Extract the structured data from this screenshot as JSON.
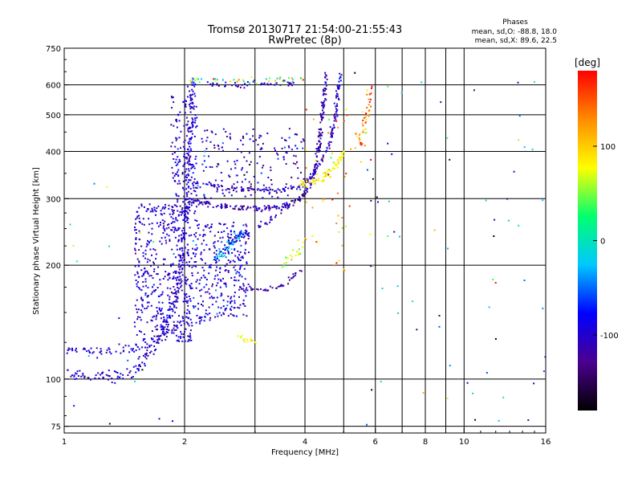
{
  "chart_data": {
    "type": "scatter",
    "title": "Tromsø 20130717 21:54:00-21:55:43",
    "subtitle": "RwPretec (8p)",
    "xlabel": "Frequency [MHz]",
    "ylabel": "Stationary phase Virtual Height [km]",
    "x_scale": "log",
    "y_scale": "log",
    "xlim": [
      1,
      16
    ],
    "ylim": [
      72,
      750
    ],
    "x_ticks": [
      1,
      2,
      4,
      6,
      8,
      10,
      16
    ],
    "x_tick_labels": [
      "1",
      "2",
      "4",
      "6",
      "8",
      "10",
      "16"
    ],
    "x_minor_gridlines": [
      3,
      5,
      7,
      9
    ],
    "y_ticks": [
      75,
      100,
      200,
      300,
      400,
      500,
      600,
      750
    ],
    "y_tick_labels": [
      "75",
      "100",
      "200",
      "300",
      "400",
      "500",
      "600",
      "750"
    ],
    "grid": true,
    "info": {
      "heading": "Phases",
      "line1": "mean, sd,O: -88.8, 18.0",
      "line2": "mean, sd,X: 89.6, 22.5"
    },
    "colorbar": {
      "label": "[deg]",
      "range": [
        -180,
        180
      ],
      "ticks": [
        100,
        0,
        -100
      ],
      "tick_labels": [
        "100",
        "0",
        "-100"
      ],
      "colors": [
        "#000000",
        "#4b0090",
        "#0000ff",
        "#00c8ff",
        "#00ff70",
        "#ffff00",
        "#ff8c00",
        "#ff0000"
      ]
    },
    "series": [
      {
        "type": "curve",
        "points": [
          [
            1.0,
            118
          ],
          [
            1.05,
            120
          ],
          [
            1.1,
            118
          ],
          [
            1.15,
            119
          ],
          [
            1.2,
            118
          ],
          [
            1.3,
            118
          ],
          [
            1.45,
            120
          ],
          [
            1.6,
            123
          ],
          [
            1.75,
            130
          ],
          [
            1.9,
            138
          ],
          [
            1.98,
            142
          ],
          [
            2.1,
            143
          ],
          [
            2.3,
            145
          ]
        ],
        "spread": 0.05,
        "density": 3,
        "phase": -95,
        "phase_sd": 12
      },
      {
        "type": "curve",
        "points": [
          [
            1.0,
            105
          ],
          [
            1.08,
            103
          ],
          [
            1.15,
            102
          ],
          [
            1.3,
            101
          ],
          [
            1.45,
            103
          ],
          [
            1.55,
            108
          ],
          [
            1.62,
            115
          ],
          [
            1.7,
            125
          ],
          [
            1.8,
            140
          ],
          [
            1.9,
            165
          ],
          [
            1.97,
            200
          ],
          [
            2.0,
            250
          ],
          [
            2.02,
            300
          ],
          [
            2.05,
            380
          ],
          [
            2.08,
            480
          ],
          [
            2.1,
            620
          ]
        ],
        "spread": 0.05,
        "density": 4,
        "phase": -100,
        "phase_sd": 15
      },
      {
        "type": "curve",
        "points": [
          [
            2.0,
            300
          ],
          [
            2.2,
            292
          ],
          [
            2.5,
            286
          ],
          [
            2.8,
            284
          ],
          [
            3.1,
            283
          ],
          [
            3.4,
            284
          ],
          [
            3.7,
            290
          ],
          [
            3.95,
            305
          ],
          [
            4.1,
            325
          ],
          [
            4.25,
            360
          ],
          [
            4.35,
            420
          ],
          [
            4.42,
            500
          ],
          [
            4.48,
            580
          ],
          [
            4.52,
            640
          ]
        ],
        "spread": 0.03,
        "density": 5,
        "phase": -115,
        "phase_sd": 20
      },
      {
        "type": "curve",
        "points": [
          [
            2.1,
            330
          ],
          [
            2.5,
            322
          ],
          [
            2.9,
            318
          ],
          [
            3.2,
            316
          ],
          [
            3.5,
            316
          ],
          [
            3.8,
            322
          ],
          [
            4.0,
            330
          ],
          [
            4.2,
            350
          ],
          [
            4.4,
            380
          ],
          [
            4.6,
            420
          ],
          [
            4.7,
            470
          ],
          [
            4.8,
            520
          ],
          [
            4.85,
            600
          ],
          [
            4.9,
            640
          ]
        ],
        "spread": 0.03,
        "density": 4,
        "phase": -105,
        "phase_sd": 20
      },
      {
        "type": "curve",
        "points": [
          [
            3.9,
            325
          ],
          [
            4.2,
            330
          ],
          [
            4.5,
            345
          ],
          [
            4.8,
            370
          ],
          [
            5.0,
            400
          ]
        ],
        "spread": 0.04,
        "density": 6,
        "phase": 80,
        "phase_sd": 12
      },
      {
        "type": "curve",
        "points": [
          [
            5.5,
            410
          ],
          [
            5.6,
            450
          ],
          [
            5.7,
            500
          ],
          [
            5.8,
            550
          ],
          [
            5.85,
            600
          ]
        ],
        "spread": 0.05,
        "density": 3,
        "phase": 140,
        "phase_sd": 30
      },
      {
        "type": "curve",
        "points": [
          [
            2.0,
            620
          ],
          [
            2.5,
            615
          ],
          [
            3.0,
            615
          ],
          [
            3.5,
            618
          ],
          [
            4.0,
            620
          ]
        ],
        "spread": 0.03,
        "density": 2,
        "phase": 30,
        "phase_sd": 60
      },
      {
        "type": "curve",
        "points": [
          [
            2.3,
            600
          ],
          [
            2.6,
            598
          ],
          [
            3.0,
            600
          ],
          [
            3.4,
            603
          ],
          [
            3.8,
            600
          ]
        ],
        "spread": 0.03,
        "density": 2,
        "phase": -110,
        "phase_sd": 15
      },
      {
        "type": "curve",
        "points": [
          [
            2.8,
            175
          ],
          [
            3.0,
            172
          ],
          [
            3.3,
            172
          ],
          [
            3.6,
            180
          ],
          [
            3.9,
            195
          ]
        ],
        "spread": 0.03,
        "density": 3,
        "phase": -115,
        "phase_sd": 12
      },
      {
        "type": "curve",
        "points": [
          [
            2.7,
            130
          ],
          [
            2.8,
            128
          ],
          [
            2.9,
            127
          ],
          [
            3.0,
            126
          ]
        ],
        "spread": 0.03,
        "density": 4,
        "phase": 80,
        "phase_sd": 10
      },
      {
        "type": "curve",
        "points": [
          [
            3.5,
            200
          ],
          [
            3.7,
            210
          ],
          [
            3.9,
            220
          ],
          [
            4.0,
            235
          ]
        ],
        "spread": 0.05,
        "density": 3,
        "phase": 70,
        "phase_sd": 20
      },
      {
        "type": "curve",
        "points": [
          [
            2.6,
            230
          ],
          [
            2.8,
            240
          ],
          [
            3.0,
            250
          ],
          [
            3.2,
            260
          ],
          [
            3.4,
            270
          ],
          [
            3.6,
            290
          ]
        ],
        "spread": 0.04,
        "density": 3,
        "phase": -100,
        "phase_sd": 15
      },
      {
        "type": "curve",
        "points": [
          [
            2.4,
            210
          ],
          [
            2.6,
            225
          ],
          [
            2.8,
            245
          ]
        ],
        "spread": 0.05,
        "density": 8,
        "phase": -40,
        "phase_sd": 25
      },
      {
        "type": "cloud",
        "x": [
          1.5,
          2.1
        ],
        "y": [
          125,
          290
        ],
        "n": 480,
        "phase": -100,
        "phase_sd": 14
      },
      {
        "type": "cloud",
        "x": [
          2.1,
          2.9
        ],
        "y": [
          145,
          260
        ],
        "n": 300,
        "phase": -95,
        "phase_sd": 20
      },
      {
        "type": "cloud",
        "x": [
          1.85,
          2.15
        ],
        "y": [
          260,
          560
        ],
        "n": 170,
        "phase": -100,
        "phase_sd": 15
      },
      {
        "type": "cloud",
        "x": [
          2.2,
          4.0
        ],
        "y": [
          300,
          460
        ],
        "n": 170,
        "phase": -110,
        "phase_sd": 25
      },
      {
        "type": "cloud",
        "x": [
          4.0,
          6.0
        ],
        "y": [
          190,
          520
        ],
        "n": 55,
        "phase": 120,
        "phase_sd": 40
      },
      {
        "type": "cloud",
        "x": [
          5.2,
          16.0
        ],
        "y": [
          75,
          650
        ],
        "n": 65,
        "phase": -60,
        "phase_sd": 90
      },
      {
        "type": "cloud",
        "x": [
          1.0,
          2.0
        ],
        "y": [
          75,
          330
        ],
        "n": 20,
        "phase": -60,
        "phase_sd": 80
      }
    ]
  }
}
